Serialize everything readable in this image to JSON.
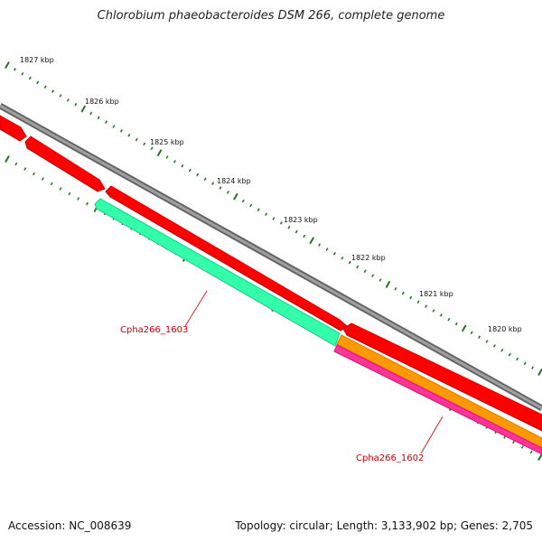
{
  "title": "Chlorobium phaeobacteroides DSM 266, complete genome",
  "footer": {
    "accession": "Accession: NC_008639",
    "summary": "Topology: circular; Length: 3,133,902 bp; Genes: 2,705"
  },
  "scale_labels": [
    "1827 kbp",
    "1826 kbp",
    "1825 kbp",
    "1824 kbp",
    "1823 kbp",
    "1822 kbp",
    "1821 kbp",
    "1820 kbp"
  ],
  "gene_labels": [
    {
      "text": "Cpha266_1603",
      "color": "#cc0000"
    },
    {
      "text": "Cpha266_1602",
      "color": "#cc0000"
    }
  ],
  "colors": {
    "backbone": "#808080",
    "cds_red": "#ff0000",
    "cds_green": "#33ffaa",
    "cds_orange": "#ff9900",
    "cds_pink": "#ff3399",
    "tick_green": "#227722",
    "label_line": "#dd2222"
  }
}
